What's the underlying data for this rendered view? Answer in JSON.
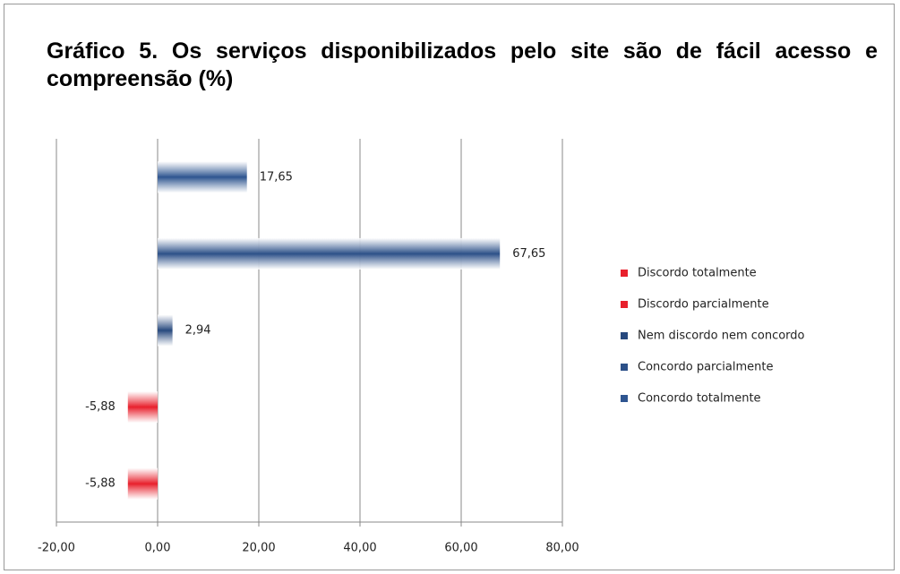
{
  "chart_data": {
    "type": "barh",
    "title": "Gráfico 5. Os serviços disponibilizados pelo site são de fácil acesso e compreensão (%)",
    "series": [
      {
        "name": "Discordo totalmente",
        "color": "#e8202c",
        "values": [
          -5.88
        ],
        "value_labels": [
          "-5,88"
        ]
      },
      {
        "name": "Discordo parcialmente",
        "color": "#e8202c",
        "values": [
          -5.88
        ],
        "value_labels": [
          "-5,88"
        ]
      },
      {
        "name": "Nem discordo nem concordo",
        "color": "#27497e",
        "values": [
          2.94
        ],
        "value_labels": [
          "2,94"
        ]
      },
      {
        "name": "Concordo parcialmente",
        "color": "#2c5088",
        "values": [
          67.65
        ],
        "value_labels": [
          "67,65"
        ]
      },
      {
        "name": "Concordo totalmente",
        "color": "#2e5590",
        "values": [
          17.65
        ],
        "value_labels": [
          "17,65"
        ]
      }
    ],
    "xlim": [
      -20,
      80
    ],
    "xticks": [
      {
        "value": -20,
        "label": "-20,00"
      },
      {
        "value": 0,
        "label": "0,00"
      },
      {
        "value": 20,
        "label": "20,00"
      },
      {
        "value": 40,
        "label": "40,00"
      },
      {
        "value": 60,
        "label": "60,00"
      },
      {
        "value": 80,
        "label": "80,00"
      }
    ],
    "grid": true,
    "legend": "right"
  }
}
